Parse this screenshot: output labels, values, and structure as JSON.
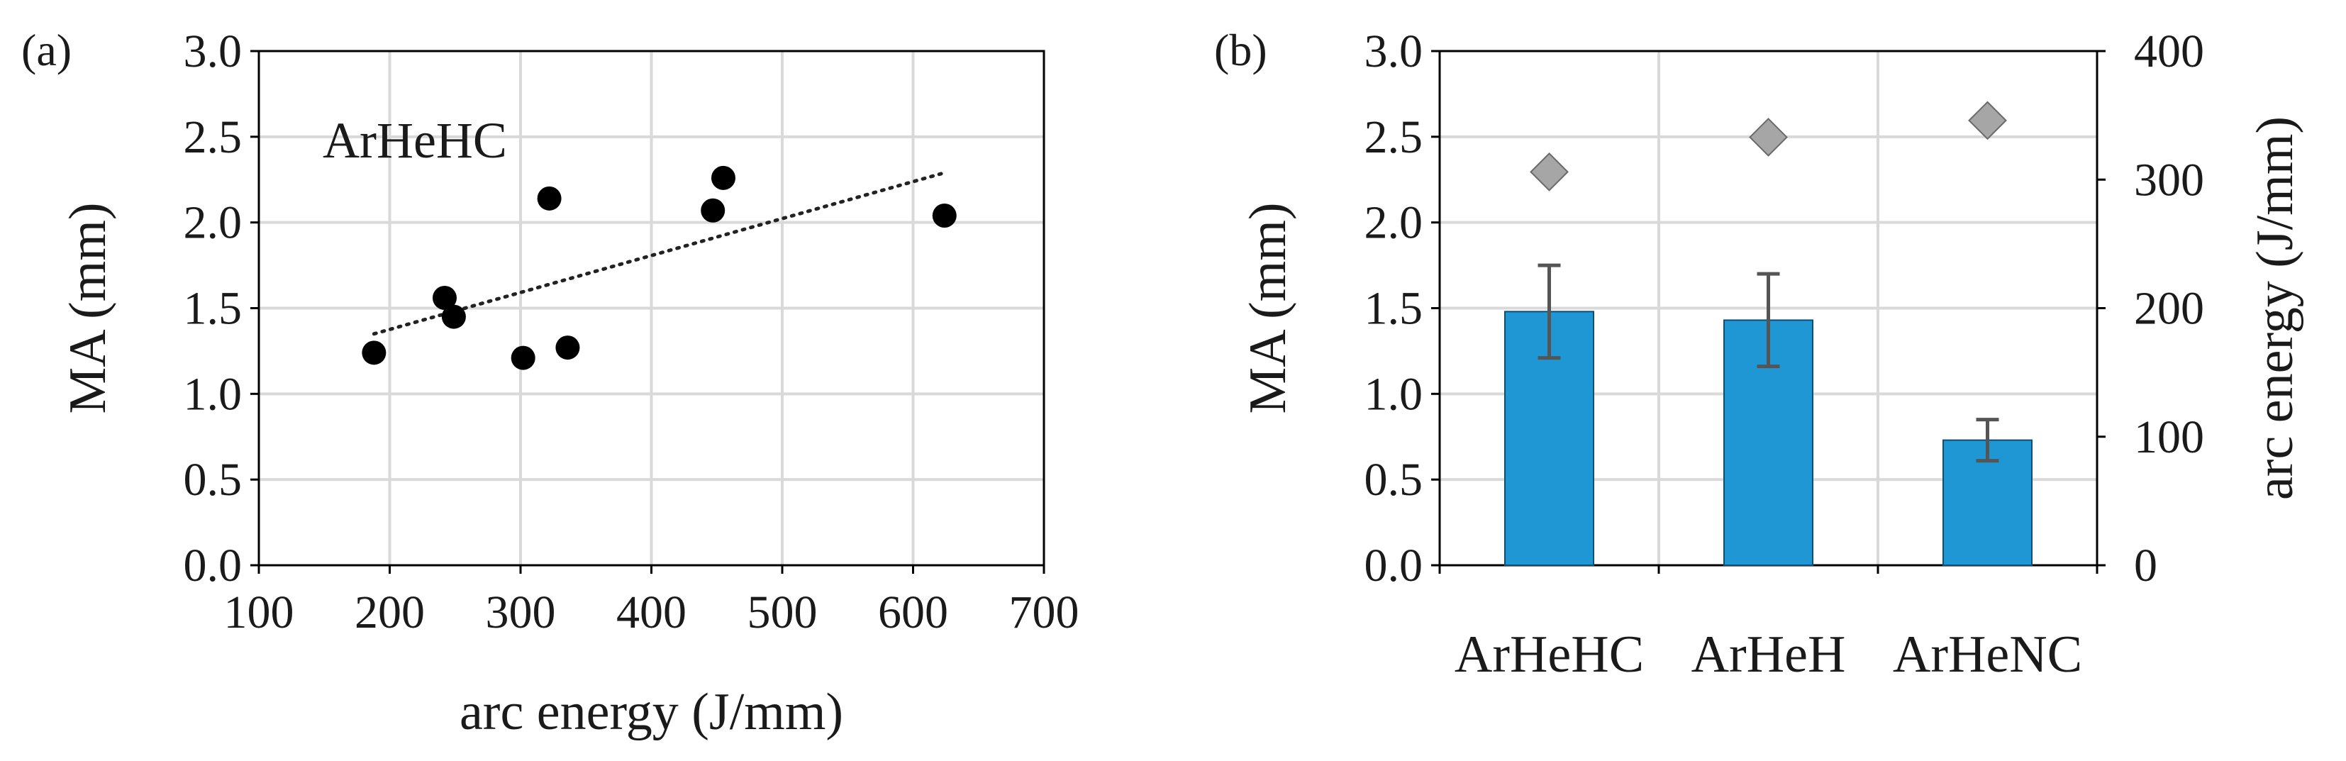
{
  "chart_data": [
    {
      "type": "scatter",
      "panel_label": "(a)",
      "annotation": "ArHeHC",
      "xlabel": "arc energy (J/mm)",
      "ylabel": "MA (mm)",
      "xlim": [
        100,
        700
      ],
      "ylim": [
        0,
        3.0
      ],
      "x_ticks": [
        "100",
        "200",
        "300",
        "400",
        "500",
        "600",
        "700"
      ],
      "y_ticks": [
        "0.0",
        "0.5",
        "1.0",
        "1.5",
        "2.0",
        "2.5",
        "3.0"
      ],
      "grid": true,
      "points": [
        {
          "x": 188,
          "y": 1.24
        },
        {
          "x": 242,
          "y": 1.56
        },
        {
          "x": 249,
          "y": 1.45
        },
        {
          "x": 302,
          "y": 1.21
        },
        {
          "x": 322,
          "y": 2.14
        },
        {
          "x": 336,
          "y": 1.27
        },
        {
          "x": 447,
          "y": 2.07
        },
        {
          "x": 455,
          "y": 2.26
        },
        {
          "x": 624,
          "y": 2.04
        }
      ],
      "trendline": {
        "style": "dotted",
        "x": [
          188,
          624
        ],
        "y": [
          1.35,
          2.29
        ]
      },
      "colors": {
        "points": "#000000",
        "trendline": "#222222",
        "grid": "#d9d9d9"
      }
    },
    {
      "type": "bar",
      "panel_label": "(b)",
      "categories": [
        "ArHeHC",
        "ArHeH",
        "ArHeNC"
      ],
      "ylabel": "MA (mm)",
      "ylabel_right": "arc energy (J/mm)",
      "ylim": [
        0,
        3.0
      ],
      "ylim_right": [
        0,
        400
      ],
      "y_ticks": [
        "0.0",
        "0.5",
        "1.0",
        "1.5",
        "2.0",
        "2.5",
        "3.0"
      ],
      "y_ticks_right": [
        "0",
        "100",
        "200",
        "300",
        "400"
      ],
      "grid": true,
      "series": [
        {
          "values": [
            1.48,
            1.43,
            0.73
          ],
          "errors": [
            0.27,
            0.27,
            0.12
          ],
          "axis": "left",
          "kind": "bar"
        },
        {
          "values": [
            306,
            333,
            346
          ],
          "axis": "right",
          "kind": "marker"
        }
      ],
      "colors": {
        "bars": "#1f97d4",
        "bar_edge": "#0d4f73",
        "error": "#555555",
        "markers": "#a6a6a6",
        "marker_edge": "#6a6a6a",
        "grid": "#d9d9d9"
      }
    }
  ]
}
